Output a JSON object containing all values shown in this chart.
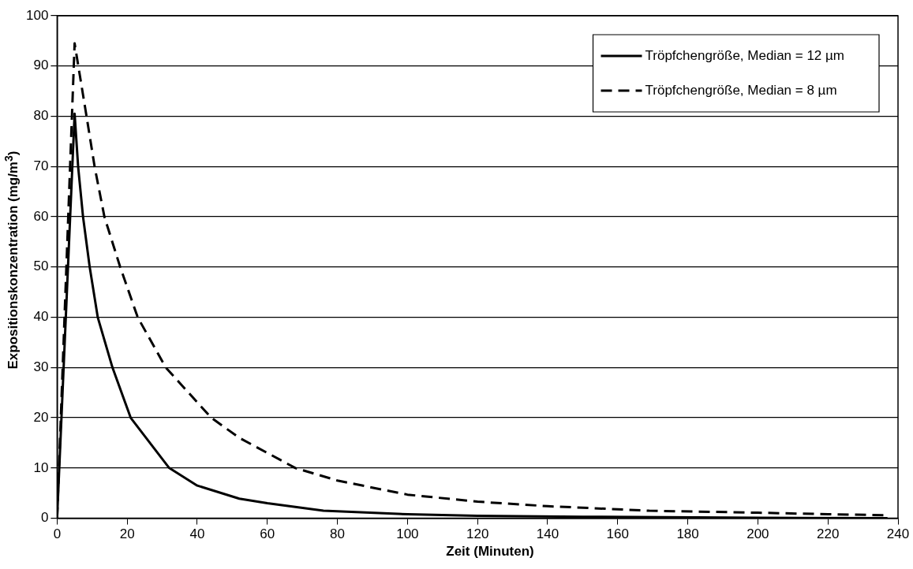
{
  "chart_data": {
    "type": "line",
    "xlabel": "Zeit (Minuten)",
    "ylabel": "Expositionskonzentration (mg/m$^{3}$)",
    "xlim": [
      0,
      240
    ],
    "xticks": [
      0,
      20,
      40,
      60,
      80,
      100,
      120,
      140,
      160,
      180,
      200,
      220,
      240
    ],
    "ylim": [
      0,
      100
    ],
    "yticks": [
      0,
      10,
      20,
      30,
      40,
      50,
      60,
      70,
      80,
      90,
      100
    ],
    "grid": "y",
    "legend": "top right",
    "marker": "none",
    "series": [
      {
        "name": "Tröpfchengröße, Median = 12 µm",
        "color": "#000000",
        "line_style": "solid",
        "x": [
          0,
          5,
          6,
          7.4,
          9.3,
          11.6,
          15.8,
          21,
          32,
          40,
          52,
          60,
          76,
          100,
          120,
          150,
          200,
          237
        ],
        "values": [
          0,
          80.5,
          70,
          60,
          50,
          40,
          30,
          20,
          10,
          6.5,
          3.9,
          3,
          1.5,
          0.8,
          0.5,
          0.3,
          0.1,
          0
        ]
      },
      {
        "name": "Tröpfchengröße, Median = 8 µm",
        "color": "#000000",
        "line_style": "dashed",
        "x": [
          0,
          5,
          8.4,
          10.7,
          13.5,
          18,
          23,
          31,
          44,
          52,
          68,
          80,
          100,
          120,
          140,
          169,
          200,
          220,
          237
        ],
        "values": [
          0,
          94.5,
          80,
          70,
          60,
          50,
          40,
          30,
          20,
          16,
          10,
          7.5,
          4.7,
          3.3,
          2.4,
          1.5,
          1.1,
          0.8,
          0.6
        ]
      }
    ]
  }
}
